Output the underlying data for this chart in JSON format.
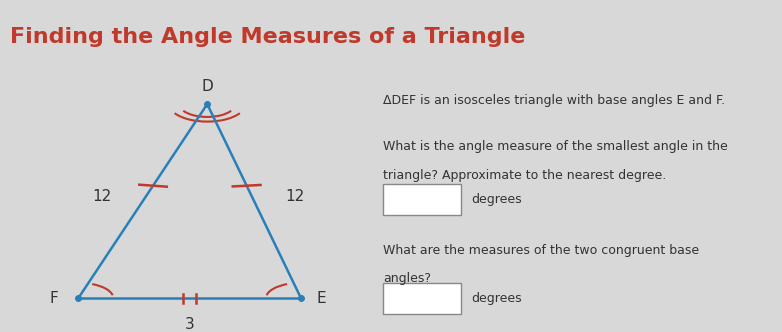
{
  "title": "Finding the Angle Measures of a Triangle",
  "title_color": "#c0392b",
  "bg_color": "#d8d8d8",
  "header_bg": "#c8c8c8",
  "triangle_color": "#2980b9",
  "label_D": "D",
  "label_F": "F",
  "label_E": "E",
  "label_3": "3",
  "label_12_left": "12",
  "label_12_right": "12",
  "tick_color": "#c0392b",
  "text_color": "#333333",
  "line1": "ΔDEF is an isosceles triangle with base angles E and F.",
  "line2": "What is the angle measure of the smallest angle in the",
  "line3": "triangle? Approximate to the nearest degree.",
  "line4": "degrees",
  "line5": "What are the measures of the two congruent base",
  "line6": "angles?",
  "line7": "degrees"
}
